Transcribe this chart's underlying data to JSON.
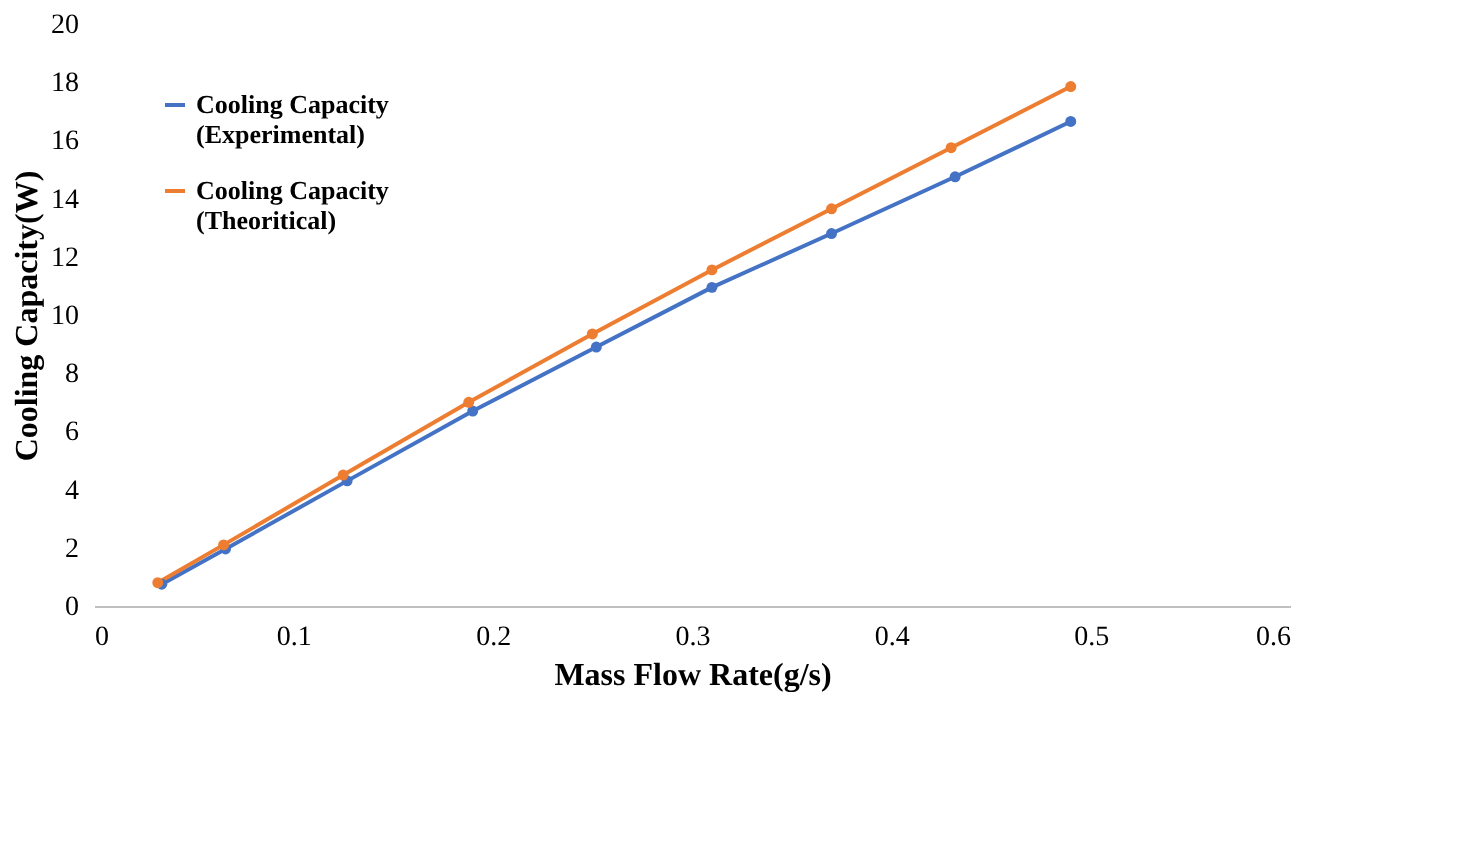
{
  "chart_data": {
    "type": "line",
    "xlabel": "Mass Flow Rate(g/s)",
    "ylabel": "Cooling Capacity(W)",
    "xlim": [
      0,
      0.6
    ],
    "xticks": [
      0,
      0.1,
      0.2,
      0.3,
      0.4,
      0.5,
      0.6
    ],
    "ylim": [
      0,
      20
    ],
    "yticks": [
      0,
      2,
      4,
      6,
      8,
      10,
      12,
      14,
      16,
      18,
      20
    ],
    "grid": false,
    "legend": "top left",
    "marker": "circle",
    "line_style": "solid",
    "series": [
      {
        "name": "Cooling Capacity (Experimental)",
        "color": "#4472c4",
        "x": [
          0.034,
          0.066,
          0.127,
          0.19,
          0.252,
          0.31,
          0.37,
          0.432,
          0.49
        ],
        "values": [
          0.75,
          1.96,
          4.3,
          6.7,
          8.9,
          10.95,
          12.8,
          14.75,
          16.65
        ]
      },
      {
        "name": "Cooling Capacity (Theoritical)",
        "color": "#ed7d31",
        "x": [
          0.032,
          0.065,
          0.125,
          0.188,
          0.25,
          0.31,
          0.37,
          0.43,
          0.49
        ],
        "values": [
          0.8,
          2.1,
          4.5,
          7.0,
          9.35,
          11.55,
          13.65,
          15.75,
          17.85
        ]
      }
    ]
  }
}
